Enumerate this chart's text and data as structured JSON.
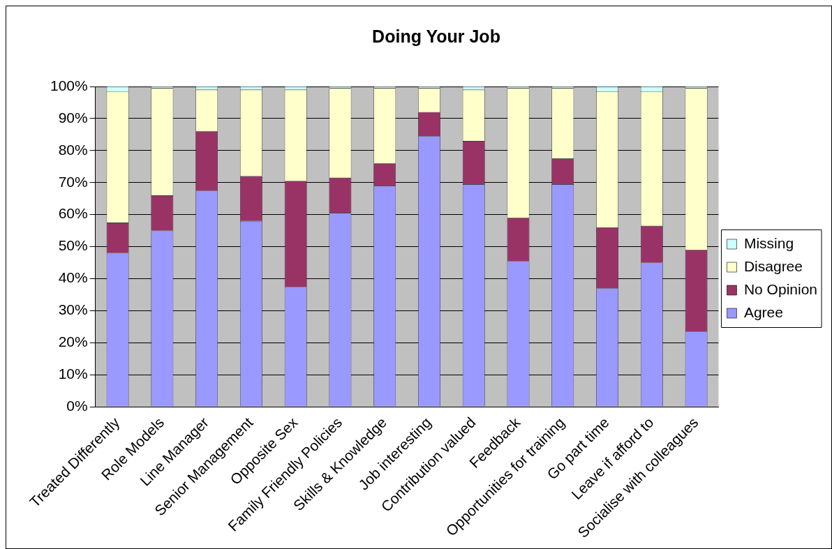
{
  "chart_data": {
    "type": "bar",
    "title": "Doing Your Job",
    "stacked": true,
    "legend": "right",
    "grid": "y",
    "categories": [
      "Treated Differently",
      "Role Models",
      "Line Manager",
      "Senior Management",
      "Opposite Sex",
      "Family Friendly Policies",
      "Skills & Knowledge",
      "Job interesting",
      "Contribution valued",
      "Feedback",
      "Opportunities for training",
      "Go part time",
      "Leave if afford to",
      "Socialise with colleagues"
    ],
    "series": [
      {
        "name": "Agree",
        "color": "#9999ff",
        "values": [
          48,
          55,
          67.5,
          58,
          37.5,
          60.5,
          69,
          84.5,
          69.5,
          45.5,
          69.5,
          37,
          45,
          23.5
        ]
      },
      {
        "name": "No Opinion",
        "color": "#993366",
        "values": [
          9.5,
          11,
          18.5,
          14,
          33,
          11,
          7,
          7.5,
          13.5,
          13.5,
          8,
          19,
          11.5,
          25.5
        ]
      },
      {
        "name": "Disagree",
        "color": "#ffffcc",
        "values": [
          41,
          33.5,
          13,
          27,
          28.5,
          28,
          23.5,
          7.5,
          16,
          40.5,
          22,
          42.5,
          42,
          50.5
        ]
      },
      {
        "name": "Missing",
        "color": "#ccffff",
        "values": [
          1.5,
          0.5,
          1,
          1,
          1,
          0.5,
          0.5,
          0.5,
          1,
          0.5,
          0.5,
          1.5,
          1.5,
          0.5
        ]
      }
    ],
    "ylim": [
      0,
      100
    ],
    "yticks": [
      {
        "value": 0,
        "label": "0%"
      },
      {
        "value": 10,
        "label": "10%"
      },
      {
        "value": 20,
        "label": "20%"
      },
      {
        "value": 30,
        "label": "30%"
      },
      {
        "value": 40,
        "label": "40%"
      },
      {
        "value": 50,
        "label": "50%"
      },
      {
        "value": 60,
        "label": "60%"
      },
      {
        "value": 70,
        "label": "70%"
      },
      {
        "value": 80,
        "label": "80%"
      },
      {
        "value": 90,
        "label": "90%"
      },
      {
        "value": 100,
        "label": "100%"
      }
    ]
  }
}
